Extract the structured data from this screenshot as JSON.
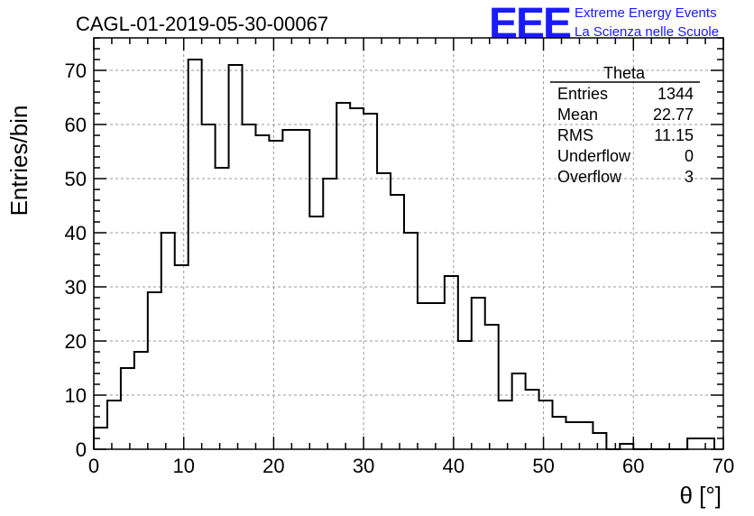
{
  "header": {
    "run_title": "CAGL-01-2019-05-30-00067",
    "logo": "EEE",
    "logo_line1": "Extreme Energy Events",
    "logo_line2": "La Scienza nelle Scuole"
  },
  "stats_box": {
    "name": "Theta",
    "rows": [
      {
        "label": "Entries",
        "value": "1344"
      },
      {
        "label": "Mean",
        "value": "22.77"
      },
      {
        "label": "RMS",
        "value": "11.15"
      },
      {
        "label": "Underflow",
        "value": "0"
      },
      {
        "label": "Overflow",
        "value": "3"
      }
    ]
  },
  "chart_data": {
    "type": "bar",
    "title": "CAGL-01-2019-05-30-00067",
    "xlabel": "θ [°]",
    "ylabel": "Entries/bin",
    "xlim": [
      0,
      70
    ],
    "ylim": [
      0,
      76
    ],
    "bin_width": 1.5,
    "bin_start": 0,
    "x_ticks": [
      0,
      10,
      20,
      30,
      40,
      50,
      60,
      70
    ],
    "y_ticks": [
      0,
      10,
      20,
      30,
      40,
      50,
      60,
      70
    ],
    "grid": true,
    "values": [
      4,
      9,
      15,
      18,
      29,
      40,
      34,
      72,
      60,
      52,
      71,
      60,
      58,
      57,
      59,
      59,
      43,
      50,
      64,
      63,
      62,
      51,
      47,
      40,
      27,
      27,
      32,
      20,
      28,
      23,
      9,
      14,
      11,
      9,
      6,
      5,
      5,
      3,
      0,
      1,
      0,
      0,
      0,
      0,
      2,
      2
    ]
  }
}
